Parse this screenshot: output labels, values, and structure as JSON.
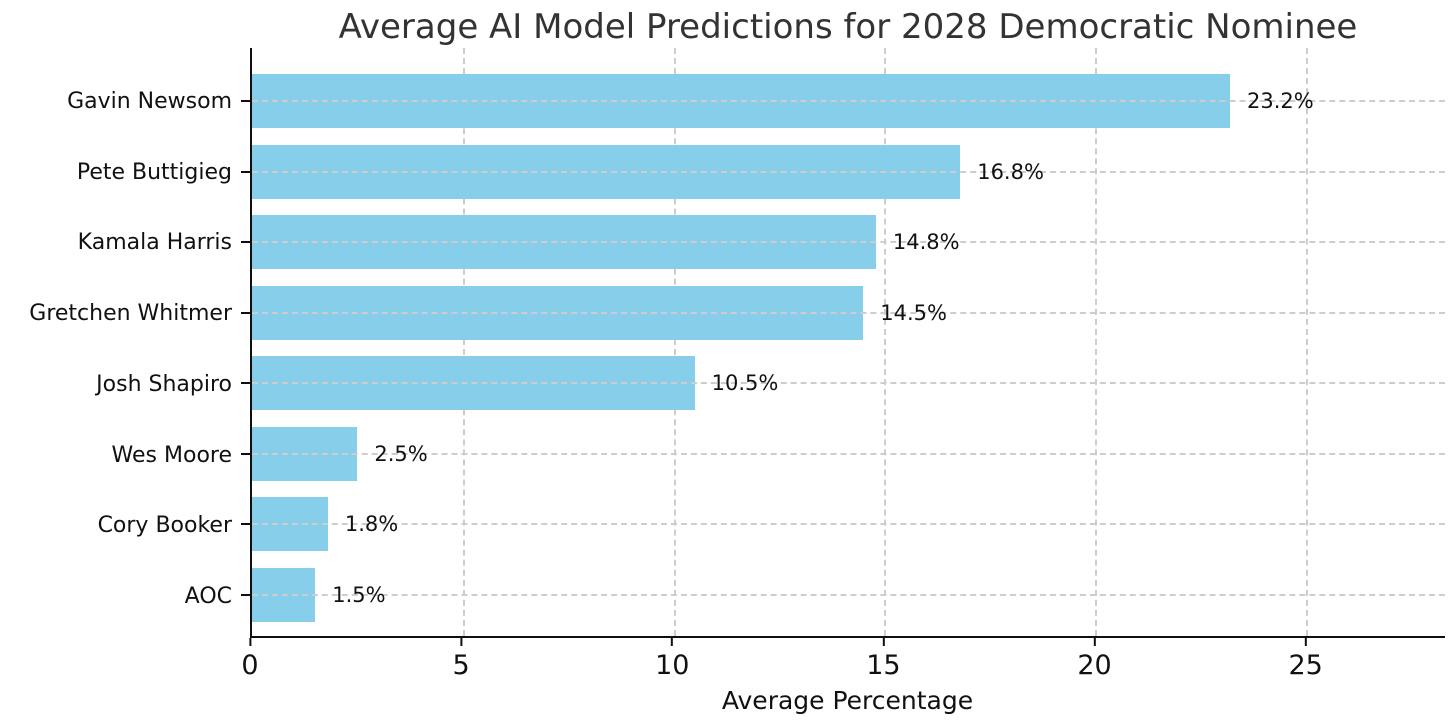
{
  "chart_data": {
    "type": "bar",
    "orientation": "horizontal",
    "title": "Average AI Model Predictions for 2028 Democratic Nominee",
    "categories": [
      "Gavin Newsom",
      "Pete Buttigieg",
      "Kamala Harris",
      "Gretchen Whitmer",
      "Josh Shapiro",
      "Wes Moore",
      "Cory Booker",
      "AOC"
    ],
    "values": [
      23.2,
      16.8,
      14.8,
      14.5,
      10.5,
      2.5,
      1.8,
      1.5
    ],
    "value_labels": [
      "23.2%",
      "16.8%",
      "14.8%",
      "14.5%",
      "10.5%",
      "2.5%",
      "1.8%",
      "1.5%"
    ],
    "xlabel": "Average Percentage",
    "ylabel": "",
    "xlim": [
      0,
      28.3
    ],
    "xticks": [
      0,
      5,
      10,
      15,
      20,
      25
    ],
    "grid": {
      "style": "dashed",
      "axes": "both",
      "color": "#cdcdcd"
    },
    "legend": "none",
    "colors": {
      "bar": "#87CEEB",
      "spine": "#0f0f0f",
      "title_text": "#333333",
      "tick_text": "#111111",
      "background": "#ffffff"
    }
  }
}
